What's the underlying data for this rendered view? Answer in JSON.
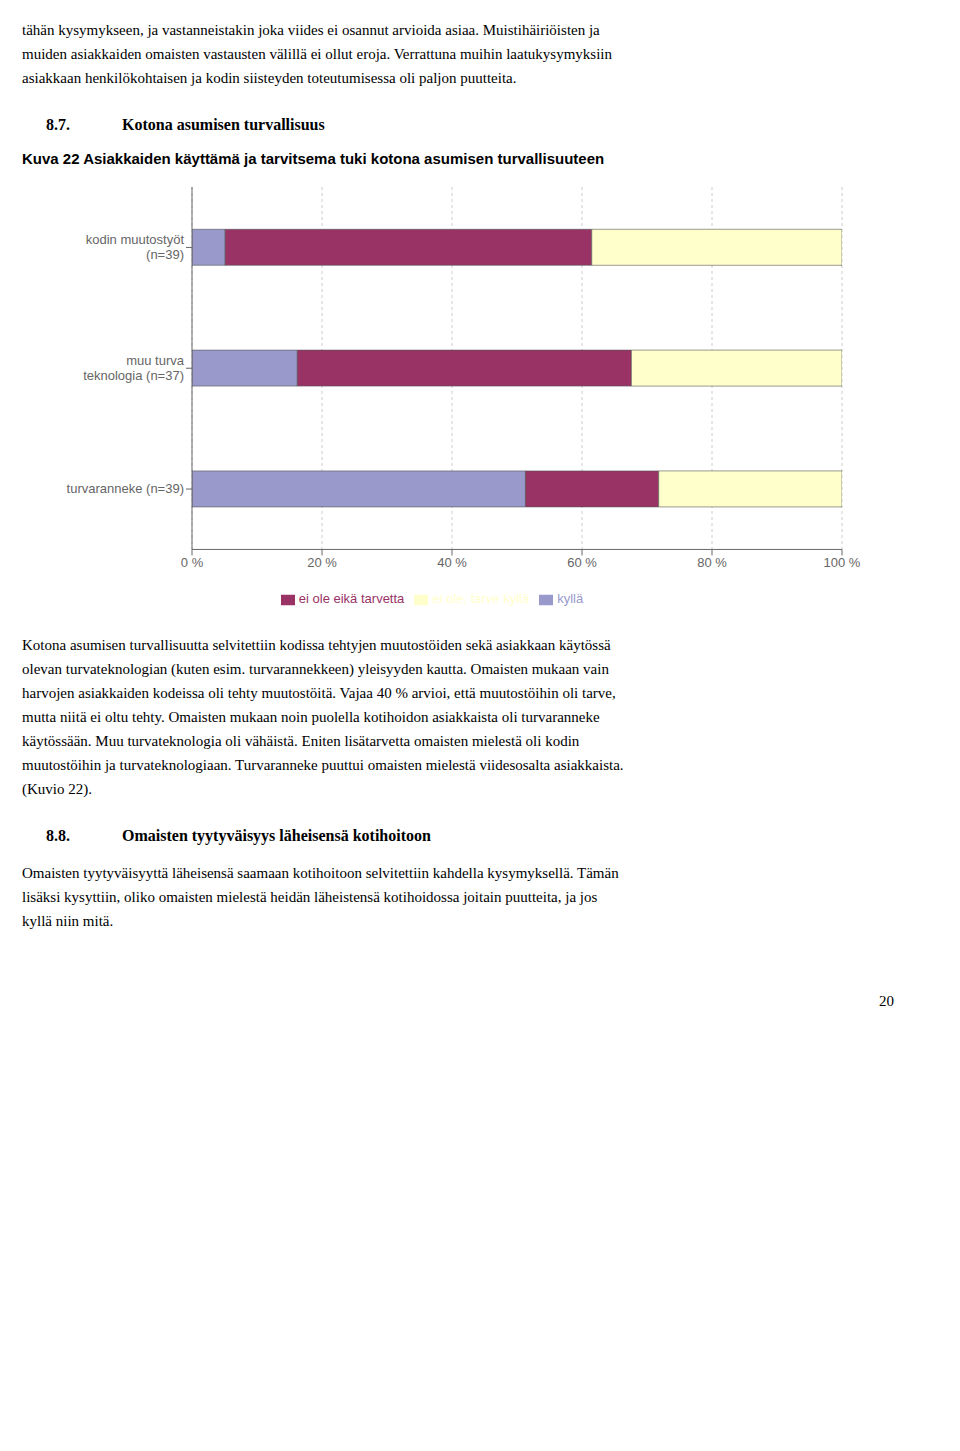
{
  "chart_data": {
    "type": "bar",
    "orientation": "horizontal",
    "stacked": true,
    "grid": true,
    "legend": "bottom",
    "title": "Kuva 22 Asiakkaiden käyttämä ja tarvitsema tuki kotona asumisen turvallisuuteen",
    "categories": [
      "kodin muutostyöt\n(n=39)",
      "muu turva\nteknologia (n=37)",
      "turvaranneke (n=39)"
    ],
    "series": [
      {
        "name": "kyllä",
        "color": "#9999CC",
        "values": [
          5.1,
          16.2,
          51.3
        ]
      },
      {
        "name": "ei ole eikä tarvetta",
        "color": "#993366",
        "values": [
          56.4,
          51.4,
          20.5
        ]
      },
      {
        "name": "ei ole, tarve kyllä",
        "color": "#FFFFCC",
        "values": [
          38.5,
          32.4,
          28.2
        ]
      }
    ],
    "xlim": [
      0,
      100
    ],
    "xticks": [
      {
        "value": 0,
        "label": "0 %"
      },
      {
        "value": 20,
        "label": "20 %"
      },
      {
        "value": 40,
        "label": "40 %"
      },
      {
        "value": 60,
        "label": "60 %"
      },
      {
        "value": 80,
        "label": "80 %"
      },
      {
        "value": 100,
        "label": "100 %"
      }
    ],
    "annotations": [
      "tähän kysymykseen, ja vastanneistakin joka viides ei osannut arvioida asiaa. Muistihäiriöisten ja",
      "muiden asiakkaiden omaisten vastausten välillä ei ollut eroja. Verrattuna muihin laatukysymyksiin",
      "asiakkaan henkilökohtaisen ja kodin siisteyden toteutumisessa oli paljon puutteita.",
      "8.7.",
      "Kotona asumisen turvallisuus",
      "Kotona asumisen turvallisuutta selvitettiin kodissa tehtyjen muutostöiden sekä asiakkaan käytössä",
      "olevan turvateknologian (kuten esim. turvarannekkeen) yleisyyden kautta. Omaisten mukaan vain",
      "harvojen asiakkaiden kodeissa oli tehty muutostöitä. Vajaa 40 % arvioi, että muutostöihin oli tarve,",
      "mutta niitä ei oltu tehty. Omaisten mukaan noin puolella kotihoidon asiakkaista oli turvaranneke",
      "käytössään. Muu turvateknologia oli vähäistä. Eniten lisätarvetta omaisten mielestä oli kodin",
      "muutostöihin ja turvateknologiaan. Turvaranneke puuttui omaisten mielestä viidesosalta asiakkaista.",
      "(Kuvio 22).",
      "8.8.",
      "Omaisten tyytyväisyys läheisensä kotihoitoon",
      "Omaisten tyytyväisyyttä läheisensä saamaan kotihoitoon selvitettiin kahdella kysymyksellä. Tämän",
      "lisäksi kysyttiin, oliko omaisten mielestä heidän läheistensä kotihoidossa joitain puutteita, ja jos",
      "kyllä niin mitä.",
      "20"
    ]
  }
}
